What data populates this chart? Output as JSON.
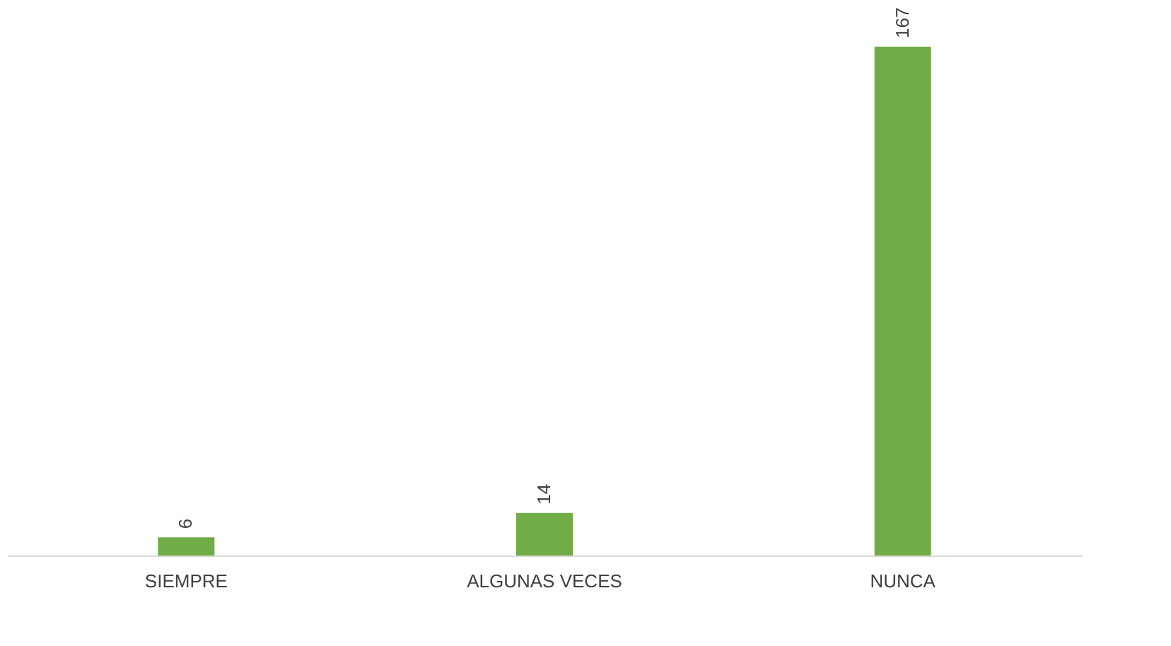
{
  "chart_data": {
    "type": "bar",
    "categories": [
      "SIEMPRE",
      "ALGUNAS VECES",
      "NUNCA"
    ],
    "values": [
      6,
      14,
      167
    ],
    "color": "#70ad47",
    "data_labels": true
  }
}
